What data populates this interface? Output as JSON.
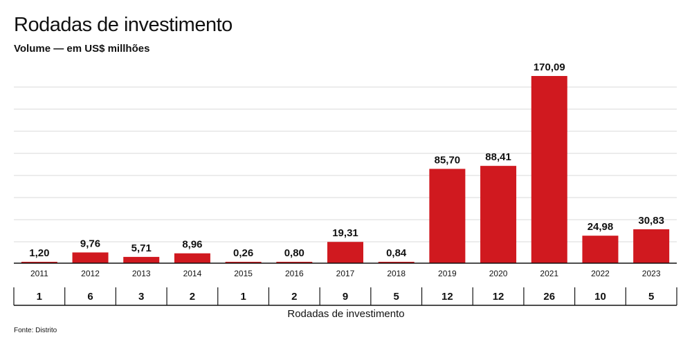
{
  "chart_data": {
    "type": "bar",
    "title": "Rodadas de investimento",
    "subtitle": "Volume — em US$ millhões",
    "categories": [
      "2011",
      "2012",
      "2013",
      "2014",
      "2015",
      "2016",
      "2017",
      "2018",
      "2019",
      "2020",
      "2021",
      "2022",
      "2023"
    ],
    "values": [
      1.2,
      9.76,
      5.71,
      8.96,
      0.26,
      0.8,
      19.31,
      0.84,
      85.7,
      88.41,
      170.09,
      24.98,
      30.83
    ],
    "value_labels": [
      "1,20",
      "9,76",
      "5,71",
      "8,96",
      "0,26",
      "0,80",
      "19,31",
      "0,84",
      "85,70",
      "88,41",
      "170,09",
      "24,98",
      "30,83"
    ],
    "rounds": [
      1,
      6,
      3,
      2,
      1,
      2,
      9,
      5,
      12,
      12,
      26,
      10,
      5
    ],
    "rounds_label": "Rodadas de investimento",
    "source": "Fonte: Distrito",
    "ylim": [
      0,
      170.09
    ],
    "grid": true,
    "bar_color": "#d0191f",
    "grid_color": "#d9d9d9"
  }
}
